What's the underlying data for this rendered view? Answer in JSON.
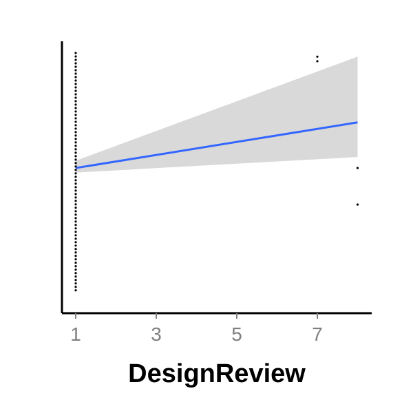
{
  "chart_data": {
    "type": "scatter",
    "xlabel": "DesignReview",
    "ylabel": "",
    "title": "",
    "xlim": [
      0.7,
      8.3
    ],
    "ylim": [
      -0.35,
      1.05
    ],
    "xticks": [
      "1",
      "3",
      "5",
      "7"
    ],
    "grid": false,
    "legend": "none",
    "points_x1_count": 70,
    "points_x1_range": [
      -0.3,
      1.0
    ],
    "points": [
      {
        "x": 7,
        "y": 0.98
      },
      {
        "x": 7,
        "y": 0.955
      },
      {
        "x": 8,
        "y": 0.37
      },
      {
        "x": 8,
        "y": 0.17
      }
    ],
    "trend": {
      "x": [
        1,
        8
      ],
      "y": [
        0.37,
        0.62
      ],
      "ci_low": [
        0.345,
        0.43
      ],
      "ci_high": [
        0.41,
        0.98
      ]
    },
    "colors": {
      "trend": "#3366ff",
      "ribbon": "#d9d9d9",
      "points": "#000000",
      "axis": "#000000",
      "tick_labels": "#7f7f7f"
    }
  }
}
